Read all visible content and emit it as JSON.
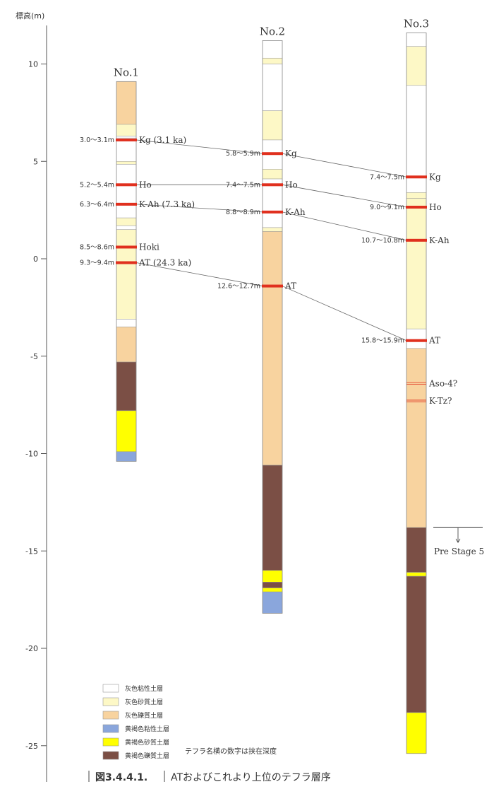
{
  "axis": {
    "title": "標高(m)",
    "ticks": [
      10,
      5,
      0,
      -5,
      -10,
      -15,
      -20,
      -25
    ],
    "tick_labels": [
      "10",
      "5",
      "0",
      "-5",
      "-10",
      "-15",
      "-20",
      "-25"
    ]
  },
  "colors": {
    "grey_clay": "#ffffff",
    "grey_sand": "#fdf8c6",
    "grey_gravel": "#f8d39f",
    "yellow_clay": "#8aa6dc",
    "yellow_sand": "#ffff00",
    "yellow_gravel": "#7b4f45",
    "tephra": "#e0301e"
  },
  "columns": [
    {
      "name": "No.1",
      "layers": [
        {
          "top": 9.1,
          "bottom": 6.9,
          "type": "grey_gravel"
        },
        {
          "top": 6.9,
          "bottom": 6.3,
          "type": "grey_sand"
        },
        {
          "top": 6.3,
          "bottom": 6.2,
          "type": "grey_clay"
        },
        {
          "top": 6.2,
          "bottom": 5.0,
          "type": "grey_clay"
        },
        {
          "top": 5.0,
          "bottom": 4.85,
          "type": "grey_sand"
        },
        {
          "top": 4.85,
          "bottom": 2.1,
          "type": "grey_clay"
        },
        {
          "top": 2.1,
          "bottom": 1.7,
          "type": "grey_sand"
        },
        {
          "top": 1.7,
          "bottom": 1.5,
          "type": "grey_clay"
        },
        {
          "top": 1.5,
          "bottom": -3.1,
          "type": "grey_sand"
        },
        {
          "top": -3.1,
          "bottom": -3.5,
          "type": "grey_clay"
        },
        {
          "top": -3.5,
          "bottom": -5.3,
          "type": "grey_gravel"
        },
        {
          "top": -5.3,
          "bottom": -7.8,
          "type": "yellow_gravel"
        },
        {
          "top": -7.8,
          "bottom": -9.9,
          "type": "yellow_sand"
        },
        {
          "top": -9.9,
          "bottom": -10.4,
          "type": "yellow_clay"
        }
      ],
      "tephras": [
        {
          "name": "Kg (3.1 ka)",
          "depth": "3.0～3.1m",
          "elev": 6.1
        },
        {
          "name": "Ho",
          "depth": "5.2～5.4m",
          "elev": 3.8
        },
        {
          "name": "K-Ah (7.3 ka)",
          "depth": "6.3～6.4m",
          "elev": 2.8
        },
        {
          "name": "Hoki",
          "depth": "8.5～8.6m",
          "elev": 0.6
        },
        {
          "name": "AT (24.3 ka)",
          "depth": "9.3～9.4m",
          "elev": -0.2
        }
      ]
    },
    {
      "name": "No.2",
      "layers": [
        {
          "top": 11.2,
          "bottom": 10.3,
          "type": "grey_clay"
        },
        {
          "top": 10.3,
          "bottom": 10.0,
          "type": "grey_sand"
        },
        {
          "top": 10.0,
          "bottom": 7.6,
          "type": "grey_clay"
        },
        {
          "top": 7.6,
          "bottom": 6.1,
          "type": "grey_sand"
        },
        {
          "top": 6.1,
          "bottom": 4.6,
          "type": "grey_clay"
        },
        {
          "top": 4.6,
          "bottom": 4.1,
          "type": "grey_sand"
        },
        {
          "top": 4.1,
          "bottom": 1.6,
          "type": "grey_clay"
        },
        {
          "top": 1.6,
          "bottom": 1.4,
          "type": "grey_sand"
        },
        {
          "top": 1.4,
          "bottom": -10.6,
          "type": "grey_gravel"
        },
        {
          "top": -10.6,
          "bottom": -16.0,
          "type": "yellow_gravel"
        },
        {
          "top": -16.0,
          "bottom": -16.6,
          "type": "yellow_sand"
        },
        {
          "top": -16.6,
          "bottom": -16.9,
          "type": "yellow_gravel"
        },
        {
          "top": -16.9,
          "bottom": -17.1,
          "type": "yellow_sand"
        },
        {
          "top": -17.1,
          "bottom": -18.2,
          "type": "yellow_clay"
        }
      ],
      "tephras": [
        {
          "name": "Kg",
          "depth": "5.8～5.9m",
          "elev": 5.4
        },
        {
          "name": "Ho",
          "depth": "7.4～7.5m",
          "elev": 3.8
        },
        {
          "name": "K-Ah",
          "depth": "8.8～8.9m",
          "elev": 2.4
        },
        {
          "name": "AT",
          "depth": "12.6～12.7m",
          "elev": -1.4
        }
      ]
    },
    {
      "name": "No.3",
      "layers": [
        {
          "top": 11.6,
          "bottom": 10.9,
          "type": "grey_clay"
        },
        {
          "top": 10.9,
          "bottom": 8.9,
          "type": "grey_sand"
        },
        {
          "top": 8.9,
          "bottom": 3.4,
          "type": "grey_clay"
        },
        {
          "top": 3.4,
          "bottom": 3.1,
          "type": "grey_sand"
        },
        {
          "top": 3.1,
          "bottom": -3.6,
          "type": "grey_sand"
        },
        {
          "top": -3.6,
          "bottom": -4.6,
          "type": "grey_clay"
        },
        {
          "top": -4.6,
          "bottom": -13.8,
          "type": "grey_gravel"
        },
        {
          "top": -13.8,
          "bottom": -16.1,
          "type": "yellow_gravel"
        },
        {
          "top": -16.1,
          "bottom": -16.3,
          "type": "yellow_sand"
        },
        {
          "top": -16.3,
          "bottom": -23.3,
          "type": "yellow_gravel"
        },
        {
          "top": -23.3,
          "bottom": -25.4,
          "type": "yellow_sand"
        }
      ],
      "tephras": [
        {
          "name": "Kg",
          "depth": "7.4～7.5m",
          "elev": 4.2
        },
        {
          "name": "Ho",
          "depth": "9.0～9.1m",
          "elev": 2.65
        },
        {
          "name": "K-Ah",
          "depth": "10.7～10.8m",
          "elev": 0.95
        },
        {
          "name": "AT",
          "depth": "15.8～15.9m",
          "elev": -4.2
        },
        {
          "name": "Aso-4?",
          "depth": "",
          "elev": -6.4,
          "thin": true
        },
        {
          "name": "K-Tz?",
          "depth": "",
          "elev": -7.3,
          "thin": true
        }
      ]
    }
  ],
  "correlations": [
    {
      "name": "Kg",
      "points": [
        [
          0,
          6.1
        ],
        [
          1,
          5.4
        ],
        [
          2,
          4.2
        ]
      ]
    },
    {
      "name": "Ho",
      "points": [
        [
          0,
          3.8
        ],
        [
          1,
          3.8
        ],
        [
          2,
          2.65
        ]
      ]
    },
    {
      "name": "K-Ah",
      "points": [
        [
          0,
          2.8
        ],
        [
          1,
          2.4
        ],
        [
          2,
          0.95
        ]
      ]
    },
    {
      "name": "AT",
      "points": [
        [
          0,
          -0.2
        ],
        [
          1,
          -1.4
        ],
        [
          2,
          -4.2
        ]
      ]
    }
  ],
  "pre_stage": {
    "label": "Pre Stage 5",
    "elev": -13.8
  },
  "legend": [
    {
      "type": "grey_clay",
      "label": "灰色粘性土層"
    },
    {
      "type": "grey_sand",
      "label": "灰色砂質土層"
    },
    {
      "type": "grey_gravel",
      "label": "灰色礫質土層"
    },
    {
      "type": "yellow_clay",
      "label": "黄褐色粘性土層"
    },
    {
      "type": "yellow_sand",
      "label": "黄褐色砂質土層"
    },
    {
      "type": "yellow_gravel",
      "label": "黄褐色礫質土層"
    }
  ],
  "note": "テフラ名横の数字は挟在深度",
  "caption": {
    "number": "図3.4.4.1.",
    "text": "ATおよびこれより上位のテフラ層序"
  }
}
